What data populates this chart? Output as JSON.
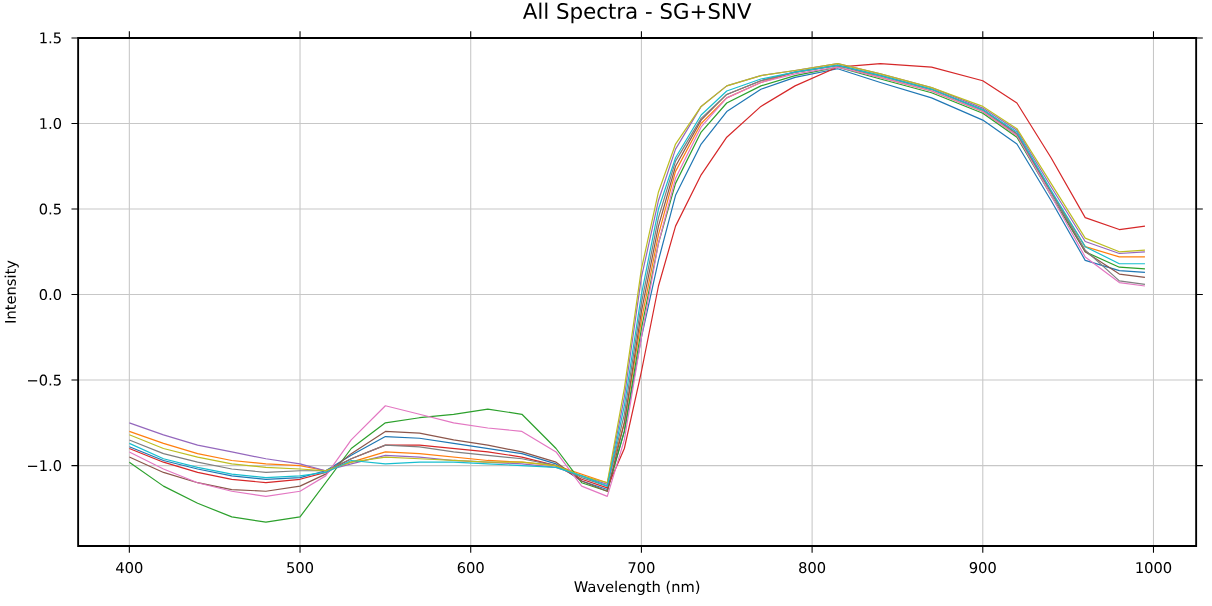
{
  "chart_data": {
    "type": "line",
    "title": "All Spectra - SG+SNV",
    "xlabel": "Wavelength (nm)",
    "ylabel": "Intensity",
    "x": [
      400,
      420,
      440,
      460,
      480,
      500,
      515,
      530,
      550,
      570,
      590,
      610,
      630,
      650,
      665,
      680,
      690,
      700,
      710,
      720,
      735,
      750,
      770,
      790,
      815,
      840,
      870,
      900,
      920,
      940,
      960,
      980,
      995
    ],
    "xlim": [
      370,
      1025
    ],
    "ylim": [
      -1.47,
      1.5
    ],
    "xticks": [
      400,
      500,
      600,
      700,
      800,
      900,
      1000
    ],
    "yticks": [
      {
        "value": -1.0,
        "label": "−1.0"
      },
      {
        "value": -0.5,
        "label": "−0.5"
      },
      {
        "value": 0.0,
        "label": "0.0"
      },
      {
        "value": 0.5,
        "label": "0.5"
      },
      {
        "value": 1.0,
        "label": "1.0"
      },
      {
        "value": 1.5,
        "label": "1.5"
      }
    ],
    "grid": true,
    "marker": "none",
    "line_style": "solid",
    "series": [
      {
        "color": "#1f77b4",
        "values": [
          -0.89,
          -0.97,
          -1.02,
          -1.06,
          -1.08,
          -1.07,
          -1.03,
          -0.94,
          -0.83,
          -0.84,
          -0.87,
          -0.9,
          -0.93,
          -0.99,
          -1.09,
          -1.14,
          -0.8,
          -0.25,
          0.2,
          0.58,
          0.88,
          1.07,
          1.2,
          1.27,
          1.32,
          1.24,
          1.15,
          1.02,
          0.88,
          0.55,
          0.2,
          0.14,
          0.13
        ]
      },
      {
        "color": "#ff7f0e",
        "values": [
          -0.8,
          -0.87,
          -0.93,
          -0.97,
          -0.99,
          -1.0,
          -1.03,
          -0.98,
          -0.92,
          -0.93,
          -0.95,
          -0.97,
          -0.98,
          -1.0,
          -1.05,
          -1.1,
          -0.75,
          -0.15,
          0.35,
          0.72,
          1.0,
          1.15,
          1.24,
          1.3,
          1.34,
          1.27,
          1.19,
          1.07,
          0.93,
          0.6,
          0.28,
          0.22,
          0.22
        ]
      },
      {
        "color": "#2ca02c",
        "values": [
          -0.98,
          -1.12,
          -1.22,
          -1.3,
          -1.33,
          -1.3,
          -1.1,
          -0.9,
          -0.75,
          -0.72,
          -0.7,
          -0.67,
          -0.7,
          -0.9,
          -1.1,
          -1.15,
          -0.8,
          -0.2,
          0.3,
          0.65,
          0.95,
          1.12,
          1.22,
          1.28,
          1.33,
          1.26,
          1.18,
          1.06,
          0.92,
          0.58,
          0.25,
          0.16,
          0.15
        ]
      },
      {
        "color": "#d62728",
        "values": [
          -0.9,
          -0.98,
          -1.04,
          -1.08,
          -1.1,
          -1.08,
          -1.04,
          -0.96,
          -0.88,
          -0.88,
          -0.9,
          -0.92,
          -0.95,
          -1.0,
          -1.08,
          -1.13,
          -0.9,
          -0.45,
          0.05,
          0.4,
          0.7,
          0.92,
          1.1,
          1.22,
          1.33,
          1.35,
          1.33,
          1.25,
          1.12,
          0.8,
          0.45,
          0.38,
          0.4
        ]
      },
      {
        "color": "#9467bd",
        "values": [
          -0.75,
          -0.82,
          -0.88,
          -0.92,
          -0.96,
          -0.99,
          -1.03,
          -0.99,
          -0.94,
          -0.95,
          -0.97,
          -0.98,
          -0.99,
          -1.01,
          -1.06,
          -1.11,
          -0.6,
          0.1,
          0.55,
          0.85,
          1.1,
          1.22,
          1.28,
          1.31,
          1.35,
          1.29,
          1.21,
          1.09,
          0.96,
          0.63,
          0.31,
          0.24,
          0.25
        ]
      },
      {
        "color": "#8c564b",
        "values": [
          -0.95,
          -1.04,
          -1.1,
          -1.14,
          -1.15,
          -1.12,
          -1.05,
          -0.93,
          -0.8,
          -0.81,
          -0.85,
          -0.88,
          -0.92,
          -0.98,
          -1.09,
          -1.15,
          -0.75,
          -0.1,
          0.4,
          0.75,
          1.02,
          1.17,
          1.25,
          1.3,
          1.34,
          1.28,
          1.2,
          1.08,
          0.94,
          0.6,
          0.25,
          0.12,
          0.1
        ]
      },
      {
        "color": "#e377c2",
        "values": [
          -0.92,
          -1.02,
          -1.1,
          -1.15,
          -1.18,
          -1.15,
          -1.06,
          -0.85,
          -0.65,
          -0.7,
          -0.75,
          -0.78,
          -0.8,
          -0.92,
          -1.12,
          -1.18,
          -0.85,
          -0.25,
          0.3,
          0.68,
          0.98,
          1.15,
          1.24,
          1.29,
          1.33,
          1.27,
          1.19,
          1.07,
          0.93,
          0.58,
          0.22,
          0.07,
          0.05
        ]
      },
      {
        "color": "#7f7f7f",
        "values": [
          -0.85,
          -0.93,
          -0.98,
          -1.02,
          -1.04,
          -1.03,
          -1.03,
          -0.96,
          -0.88,
          -0.89,
          -0.92,
          -0.94,
          -0.96,
          -1.0,
          -1.07,
          -1.12,
          -0.7,
          -0.05,
          0.45,
          0.78,
          1.03,
          1.17,
          1.25,
          1.3,
          1.34,
          1.28,
          1.2,
          1.08,
          0.94,
          0.6,
          0.26,
          0.08,
          0.06
        ]
      },
      {
        "color": "#bcbd22",
        "values": [
          -0.82,
          -0.9,
          -0.95,
          -0.99,
          -1.01,
          -1.02,
          -1.03,
          -0.98,
          -0.95,
          -0.96,
          -0.97,
          -0.98,
          -0.98,
          -1.0,
          -1.06,
          -1.1,
          -0.55,
          0.15,
          0.6,
          0.88,
          1.1,
          1.22,
          1.28,
          1.31,
          1.35,
          1.29,
          1.21,
          1.1,
          0.97,
          0.65,
          0.33,
          0.25,
          0.26
        ]
      },
      {
        "color": "#17becf",
        "values": [
          -0.87,
          -0.96,
          -1.01,
          -1.05,
          -1.07,
          -1.06,
          -1.04,
          -0.97,
          -0.99,
          -0.98,
          -0.98,
          -0.99,
          -1.0,
          -1.01,
          -1.06,
          -1.12,
          -0.65,
          0.0,
          0.5,
          0.8,
          1.05,
          1.19,
          1.26,
          1.3,
          1.34,
          1.28,
          1.2,
          1.08,
          0.95,
          0.61,
          0.28,
          0.18,
          0.18
        ]
      }
    ]
  }
}
